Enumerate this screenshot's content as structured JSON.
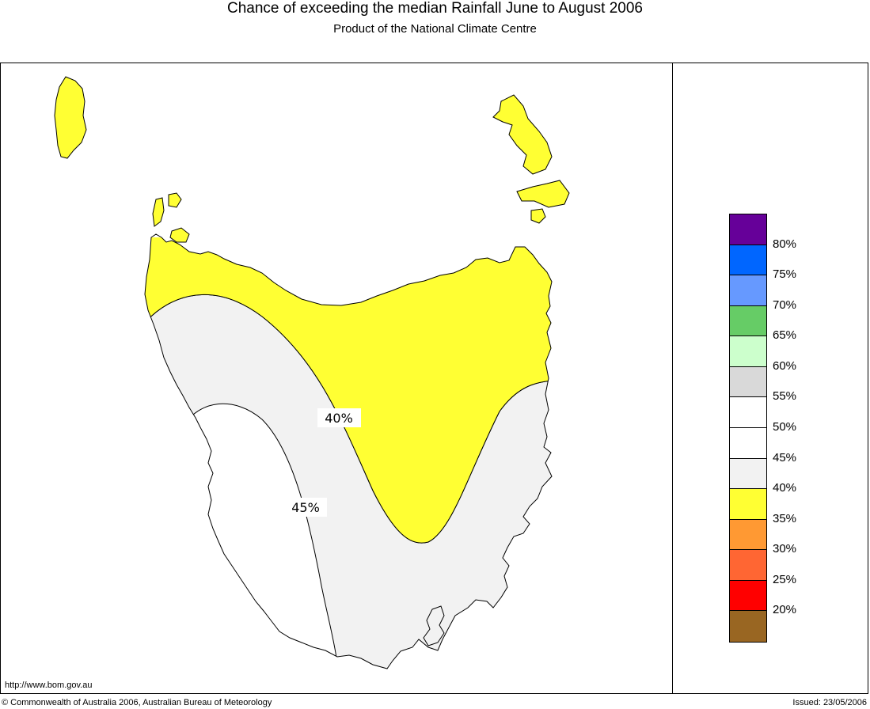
{
  "header": {
    "title": "Chance of exceeding the median Rainfall June to August 2006",
    "subtitle": "Product of the National Climate Centre"
  },
  "footer": {
    "url": "http://www.bom.gov.au",
    "copyright": "© Commonwealth of Australia 2006, Australian Bureau of Meteorology",
    "issued": "Issued: 23/05/2006"
  },
  "map": {
    "contour_labels": [
      "40%",
      "45%"
    ],
    "zone_colors": {
      "zone_35_40": "#ffff33",
      "zone_40_45": "#f2f2f2",
      "zone_45_50": "#ffffff"
    }
  },
  "legend": {
    "swatches": [
      {
        "color": "#660099"
      },
      {
        "color": "#0066ff"
      },
      {
        "color": "#6699ff"
      },
      {
        "color": "#66cc66"
      },
      {
        "color": "#ccffcc"
      },
      {
        "color": "#d9d9d9"
      },
      {
        "color": "#ffffff"
      },
      {
        "color": "#ffffff"
      },
      {
        "color": "#f2f2f2"
      },
      {
        "color": "#ffff33"
      },
      {
        "color": "#ff9933"
      },
      {
        "color": "#ff6633"
      },
      {
        "color": "#ff0000"
      },
      {
        "color": "#996622"
      }
    ],
    "labels": [
      "80%",
      "75%",
      "70%",
      "65%",
      "60%",
      "55%",
      "50%",
      "45%",
      "40%",
      "35%",
      "30%",
      "25%",
      "20%"
    ]
  }
}
